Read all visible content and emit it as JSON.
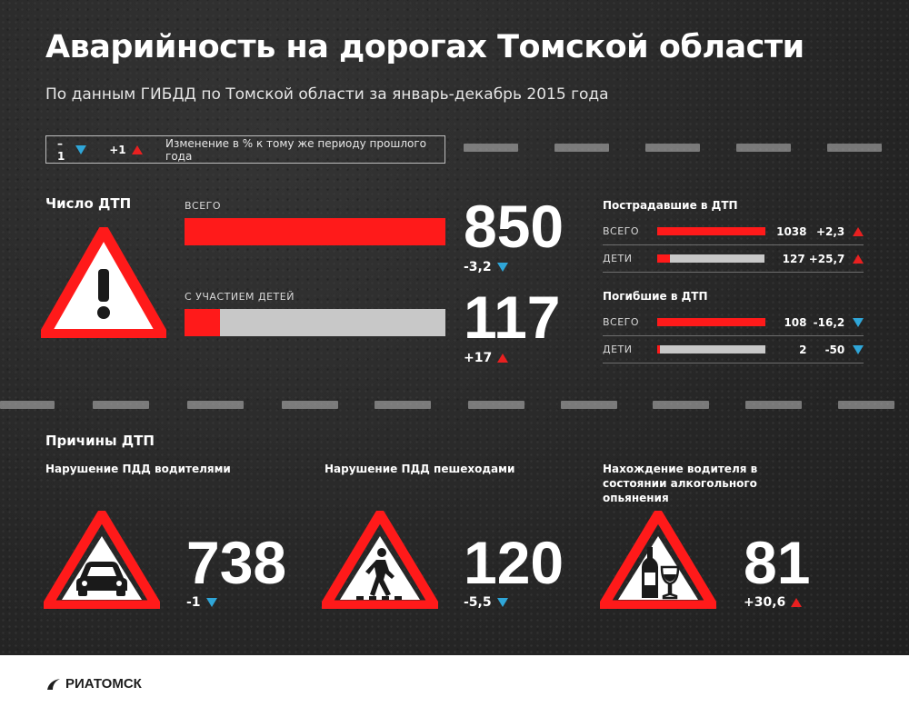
{
  "header": {
    "title": "Аварийность на дорогах Томской области",
    "subtitle": "По данным ГИБДД по Томской области за январь-декабрь 2015 года"
  },
  "legend": {
    "down_value": "–1",
    "up_value": "+1",
    "text": "Изменение в % к тому же периоду прошлого года"
  },
  "accidents": {
    "section_title": "Число ДТП",
    "total_label": "ВСЕГО",
    "total_value": "850",
    "total_change": "-3,2",
    "total_trend": "down",
    "total_fill": 1.0,
    "children_label": "С УЧАСТИЕМ ДЕТЕЙ",
    "children_value": "117",
    "children_change": "+17",
    "children_trend": "up",
    "children_fill": 0.137
  },
  "injured": {
    "title": "Пострадавшие в ДТП",
    "rows": [
      {
        "label": "ВСЕГО",
        "value": "1038",
        "change": "+2,3",
        "trend": "up",
        "fill": 1.0
      },
      {
        "label": "ДЕТИ",
        "value": "127",
        "change": "+25,7",
        "trend": "up",
        "fill": 0.122
      }
    ]
  },
  "killed": {
    "title": "Погибшие в ДТП",
    "rows": [
      {
        "label": "ВСЕГО",
        "value": "108",
        "change": "-16,2",
        "trend": "down",
        "fill": 1.0
      },
      {
        "label": "ДЕТИ",
        "value": "2",
        "change": "-50",
        "trend": "down",
        "fill": 0.019
      }
    ]
  },
  "causes": {
    "section_title": "Причины ДТП",
    "items": [
      {
        "title": "Нарушение ПДД водителями",
        "value": "738",
        "change": "-1",
        "trend": "down",
        "icon": "car-icon"
      },
      {
        "title": "Нарушение ПДД пешеходами",
        "value": "120",
        "change": "-5,5",
        "trend": "down",
        "icon": "pedestrian-icon"
      },
      {
        "title": "Нахождение водителя в состоянии алкогольного опьянения",
        "value": "81",
        "change": "+30,6",
        "trend": "up",
        "icon": "wine-bottle-glass-icon"
      }
    ]
  },
  "footer": {
    "logo_text": "РИАТОМСК"
  },
  "colors": {
    "accent_red": "#ff1a1a",
    "down_blue": "#2fa6d8",
    "up_red": "#e82020",
    "bar_gray": "#c8c8c8"
  },
  "chart_data": [
    {
      "type": "bar",
      "title": "Число ДТП",
      "categories": [
        "ВСЕГО",
        "С УЧАСТИЕМ ДЕТЕЙ"
      ],
      "values": [
        850,
        117
      ],
      "changes_pct": [
        -3.2,
        17
      ]
    },
    {
      "type": "bar",
      "title": "Пострадавшие в ДТП",
      "categories": [
        "ВСЕГО",
        "ДЕТИ"
      ],
      "values": [
        1038,
        127
      ],
      "changes_pct": [
        2.3,
        25.7
      ]
    },
    {
      "type": "bar",
      "title": "Погибшие в ДТП",
      "categories": [
        "ВСЕГО",
        "ДЕТИ"
      ],
      "values": [
        108,
        2
      ],
      "changes_pct": [
        -16.2,
        -50
      ]
    },
    {
      "type": "table",
      "title": "Причины ДТП",
      "categories": [
        "Нарушение ПДД водителями",
        "Нарушение ПДД пешеходами",
        "Нахождение водителя в состоянии алкогольного опьянения"
      ],
      "values": [
        738,
        120,
        81
      ],
      "changes_pct": [
        -1,
        -5.5,
        30.6
      ]
    }
  ]
}
